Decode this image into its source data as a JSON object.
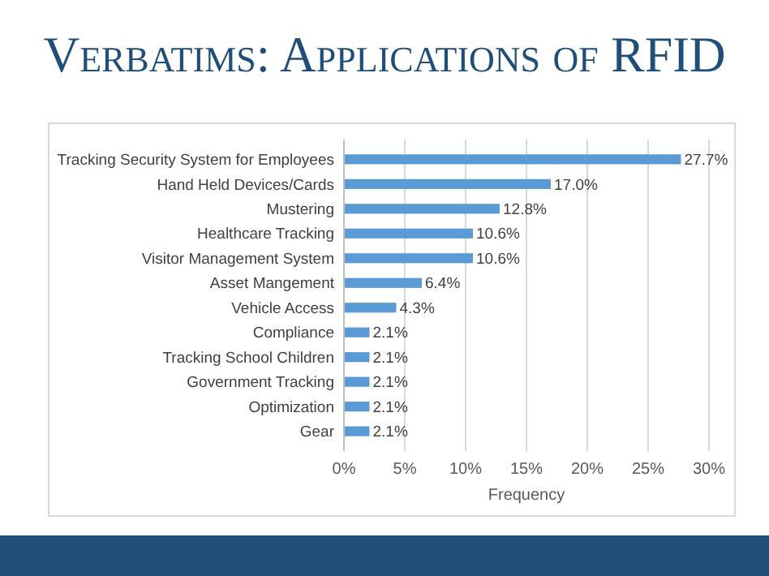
{
  "chart_data": {
    "type": "bar",
    "orientation": "horizontal",
    "title": "Verbatims: Applications of RFID",
    "categories": [
      "Tracking Security System for Employees",
      "Hand Held Devices/Cards",
      "Mustering",
      "Healthcare Tracking",
      "Visitor Management System",
      "Asset Mangement",
      "Vehicle Access",
      "Compliance",
      "Tracking School Children",
      "Government Tracking",
      "Optimization",
      "Gear"
    ],
    "values": [
      27.7,
      17.0,
      12.8,
      10.6,
      10.6,
      6.4,
      4.3,
      2.1,
      2.1,
      2.1,
      2.1,
      2.1
    ],
    "value_labels": [
      "27.7%",
      "17.0%",
      "12.8%",
      "10.6%",
      "10.6%",
      "6.4%",
      "4.3%",
      "2.1%",
      "2.1%",
      "2.1%",
      "2.1%",
      "2.1%"
    ],
    "color": "#5b9bd5",
    "xlabel": "Frequency",
    "xlim": [
      0,
      30
    ],
    "xticks": [
      {
        "value": 0,
        "label": "0%"
      },
      {
        "value": 5,
        "label": "5%"
      },
      {
        "value": 10,
        "label": "10%"
      },
      {
        "value": 15,
        "label": "15%"
      },
      {
        "value": 20,
        "label": "20%"
      },
      {
        "value": 25,
        "label": "25%"
      },
      {
        "value": 30,
        "label": "30%"
      }
    ],
    "grid": "x"
  }
}
